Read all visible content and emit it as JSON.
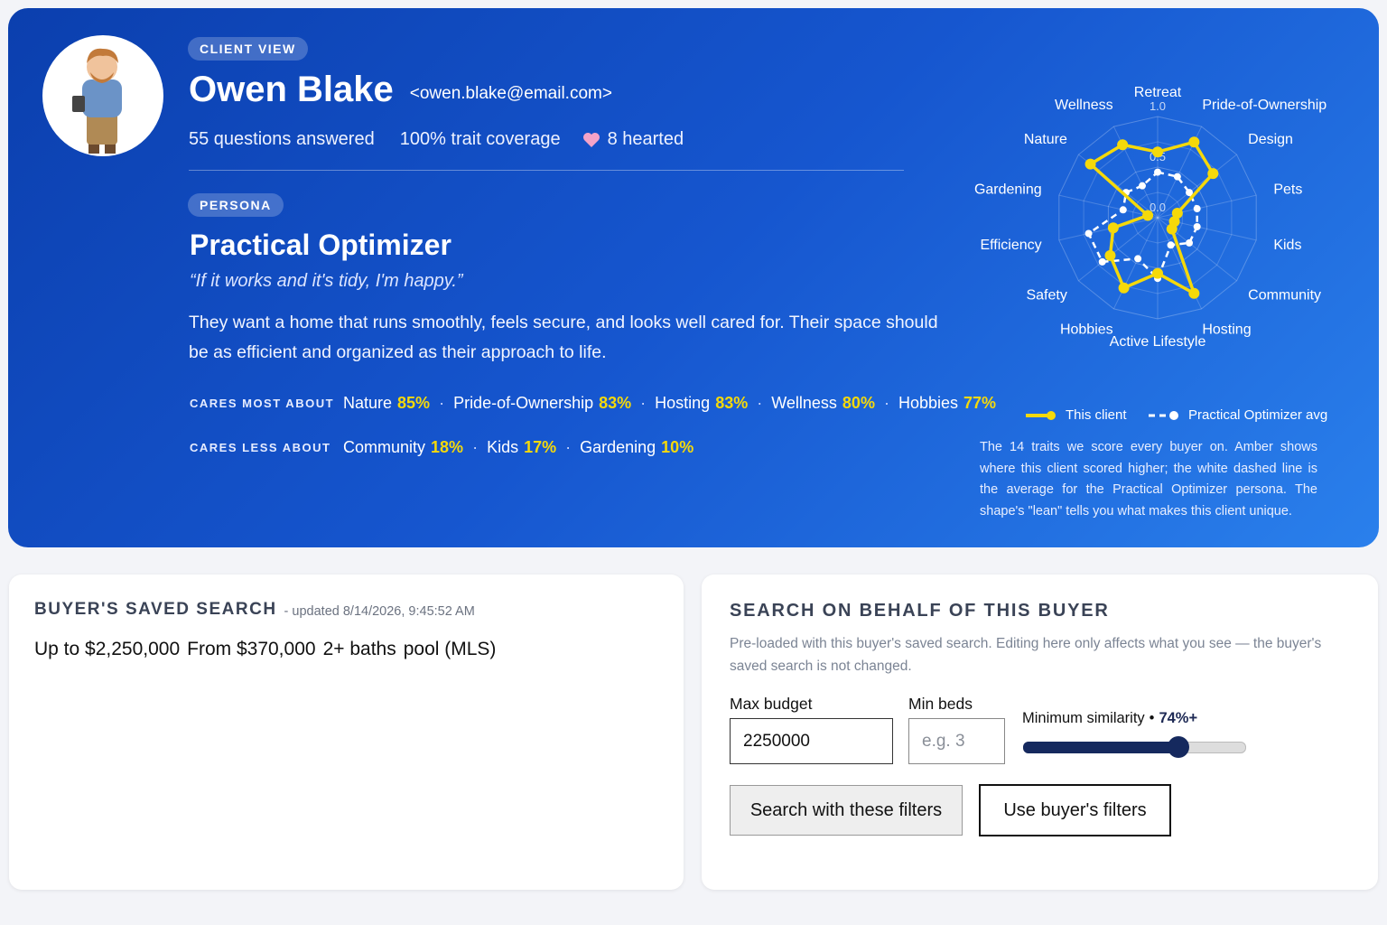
{
  "header": {
    "badge": "CLIENT VIEW",
    "name": "Owen Blake",
    "email": "<owen.blake@email.com>",
    "stats": [
      "55 questions answered",
      "100% trait coverage",
      "8 hearted"
    ]
  },
  "persona": {
    "badge": "PERSONA",
    "title": "Practical Optimizer",
    "quote": "“If it works and it's tidy, I'm happy.”",
    "description": "They want a home that runs smoothly, feels secure, and looks well cared for. Their space should be as efficient and organized as their approach to life.",
    "cares_most": {
      "label": "CARES MOST ABOUT",
      "items": [
        {
          "name": "Nature",
          "value": "85%"
        },
        {
          "name": "Pride-of-Ownership",
          "value": "83%"
        },
        {
          "name": "Hosting",
          "value": "83%"
        },
        {
          "name": "Wellness",
          "value": "80%"
        },
        {
          "name": "Hobbies",
          "value": "77%"
        }
      ]
    },
    "cares_less": {
      "label": "CARES LESS ABOUT",
      "items": [
        {
          "name": "Community",
          "value": "18%"
        },
        {
          "name": "Kids",
          "value": "17%"
        },
        {
          "name": "Gardening",
          "value": "10%"
        }
      ]
    }
  },
  "chart_data": {
    "type": "radar",
    "categories": [
      "Retreat",
      "Pride-of-Ownership",
      "Design",
      "Pets",
      "Kids",
      "Community",
      "Hosting",
      "Active Lifestyle",
      "Hobbies",
      "Safety",
      "Efficiency",
      "Gardening",
      "Nature",
      "Wellness"
    ],
    "series": [
      {
        "name": "This client",
        "color": "#f5d90a",
        "values": [
          0.65,
          0.83,
          0.7,
          0.2,
          0.17,
          0.18,
          0.83,
          0.55,
          0.77,
          0.6,
          0.45,
          0.1,
          0.85,
          0.8
        ]
      },
      {
        "name": "Practical Optimizer avg",
        "color": "#ffffff",
        "values": [
          0.45,
          0.45,
          0.4,
          0.4,
          0.4,
          0.4,
          0.3,
          0.6,
          0.45,
          0.7,
          0.7,
          0.35,
          0.4,
          0.35
        ]
      }
    ],
    "rlim": [
      0,
      1
    ],
    "rticks": [
      {
        "value": 0,
        "label": "0.0"
      },
      {
        "value": 0.5,
        "label": "0.5"
      },
      {
        "value": 1,
        "label": "1.0"
      }
    ],
    "caption": "The 14 traits we score every buyer on. Amber shows where this client scored higher; the white dashed line is the average for the Practical Optimizer persona. The shape's \"lean\" tells you what makes this client unique."
  },
  "saved_search": {
    "title": "BUYER'S SAVED SEARCH",
    "updated": "- updated 8/14/2026, 9:45:52 AM",
    "criteria": [
      "Up to $2,250,000",
      "From $370,000",
      "2+ baths",
      "pool (MLS)"
    ]
  },
  "search": {
    "title": "SEARCH ON BEHALF OF THIS BUYER",
    "note": "Pre-loaded with this buyer's saved search. Editing here only affects what you see — the buyer's saved search is not changed.",
    "max_budget_label": "Max budget",
    "max_budget_value": "2250000",
    "min_beds_label": "Min beds",
    "min_beds_placeholder": "e.g. 3",
    "similarity_label": "Minimum similarity",
    "similarity_value": "74%+",
    "search_button": "Search with these filters",
    "buyer_button": "Use buyer's filters"
  }
}
